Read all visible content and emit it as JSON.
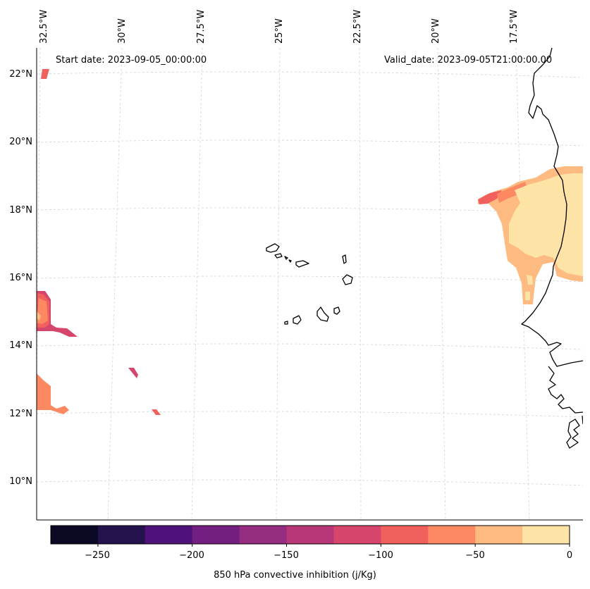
{
  "header": {
    "start_date": "Start date: 2023-09-05_00:00:00",
    "valid_date": "Valid_date: 2023-09-05T21:00:00.00"
  },
  "map": {
    "lon_labels": [
      "32.5°W",
      "30°W",
      "27.5°W",
      "25°W",
      "22.5°W",
      "20°W",
      "17.5°W"
    ],
    "lat_labels": [
      "22°N",
      "20°N",
      "18°N",
      "16°N",
      "14°N",
      "12°N",
      "10°N"
    ],
    "region": "Cabo Verde and West African coast",
    "fields": [
      {
        "name": "west-african-coast",
        "cin_level": "0 to -25 / -25 to -50 / -50 to -75"
      },
      {
        "name": "atlantic-west-patches",
        "cin_level": "-50 to -125"
      }
    ]
  },
  "colorbar": {
    "label": "850 hPa convective inhibition (j/Kg)",
    "ticks": [
      "−250",
      "−200",
      "−150",
      "−100",
      "−50",
      "0"
    ],
    "bounds": [
      -275,
      -250,
      -225,
      -200,
      -175,
      -150,
      -125,
      -100,
      -75,
      -50,
      -25,
      0
    ],
    "colors": [
      "#0b0924",
      "#24124d",
      "#4f127b",
      "#721f81",
      "#952c80",
      "#b73779",
      "#d6456c",
      "#f0605d",
      "#fc8961",
      "#febb81",
      "#fde4a6"
    ]
  }
}
